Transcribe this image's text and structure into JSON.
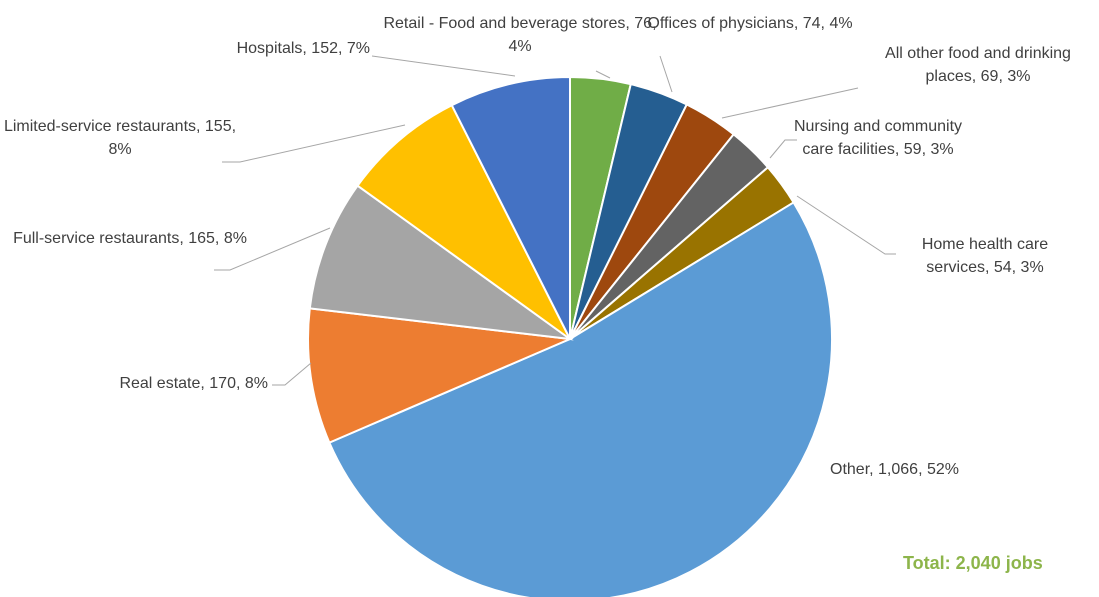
{
  "chart_data": {
    "type": "pie",
    "values": [
      76,
      74,
      69,
      59,
      54,
      1066,
      170,
      165,
      155,
      152
    ],
    "value_labels": [
      "Retail - Food and beverage stores, 76, 4%",
      "Offices of physicians, 74, 4%",
      "All other food and drinking places, 69, 3%",
      "Nursing and community care facilities, 59, 3%",
      "Home health care services, 54, 3%",
      "Other, 1,066, 52%",
      "Real estate, 170, 8%",
      "Full-service restaurants, 165, 8%",
      "Limited-service restaurants, 155, 8%",
      "Hospitals, 152, 7%"
    ],
    "colors": [
      "#70ad47",
      "#255e91",
      "#9e480e",
      "#636363",
      "#997300",
      "#5b9bd5",
      "#ed7d31",
      "#a5a5a5",
      "#ffc000",
      "#4472c4"
    ],
    "annotation": "Total: 2,040 jobs"
  }
}
